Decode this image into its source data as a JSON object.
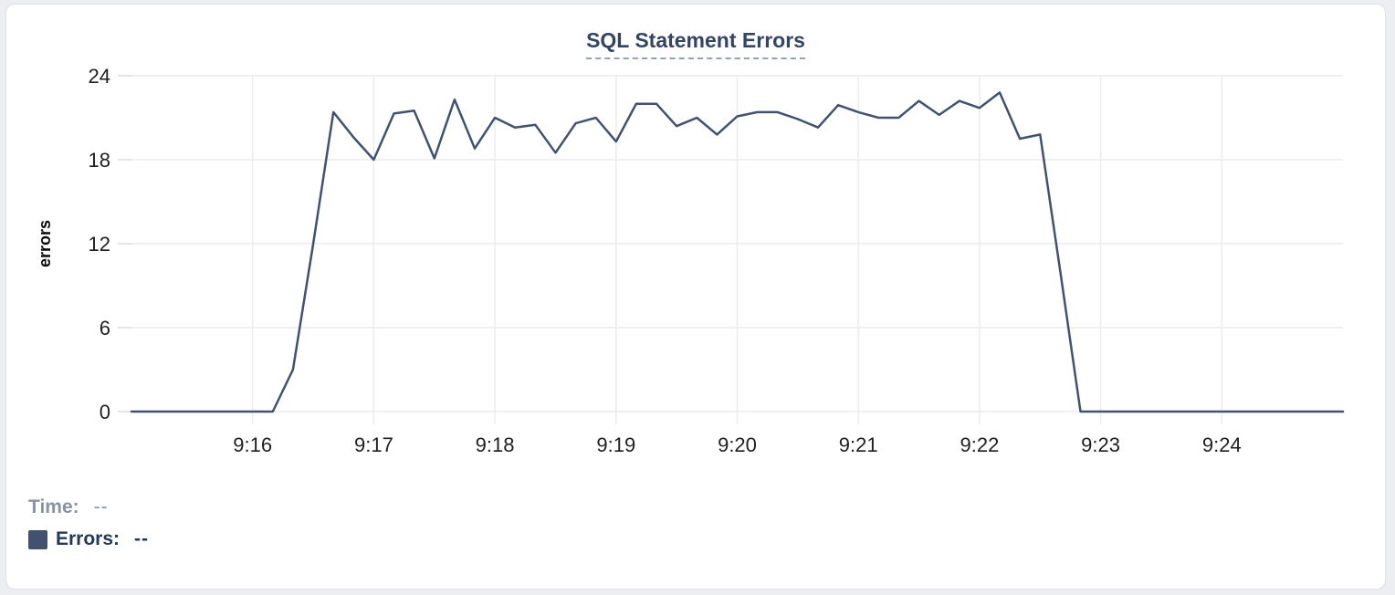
{
  "header": {
    "title": "SQL Statement Errors"
  },
  "legend": {
    "time_label": "Time:",
    "time_value": "--",
    "errors_label": "Errors:",
    "errors_value": "--"
  },
  "colors": {
    "line": "#42526e",
    "swatch": "#42526e",
    "title": "#344563",
    "title_underline": "#98a1b0",
    "time_text": "#8993a4",
    "errors_text": "#253858",
    "grid": "#ececec",
    "tick_dash": "#e4e4e4",
    "tick_label": "#1f1f1f",
    "axis_title": "#0a0a0a"
  },
  "chart_data": {
    "type": "line",
    "title": "SQL Statement Errors",
    "xlabel": "",
    "ylabel": "errors",
    "ylim": [
      0,
      24
    ],
    "yticks": [
      0,
      6,
      12,
      18,
      24
    ],
    "ytick_labels": [
      "0",
      "6",
      "12",
      "18",
      "24"
    ],
    "xtick_labels": [
      "9:16",
      "9:17",
      "9:18",
      "9:19",
      "9:20",
      "9:21",
      "9:22",
      "9:23",
      "9:24"
    ],
    "x_range": [
      "9:15:00",
      "9:25:00"
    ],
    "point_interval_seconds": 10,
    "grid": true,
    "legend_position": "bottom-left",
    "series": [
      {
        "name": "Errors",
        "start_time": "9:15:00",
        "values": [
          0,
          0,
          0,
          0,
          0,
          0,
          0,
          0,
          3,
          12,
          21.4,
          19.6,
          18,
          21.3,
          21.5,
          18.1,
          22.3,
          18.8,
          21,
          20.3,
          20.5,
          18.5,
          20.6,
          21,
          19.3,
          22,
          22,
          20.4,
          21,
          19.8,
          21.1,
          21.4,
          21.4,
          20.9,
          20.3,
          21.9,
          21.4,
          21,
          21,
          22.2,
          21.2,
          22.2,
          21.7,
          22.8,
          19.5,
          19.8,
          10,
          0,
          0,
          0,
          0,
          0,
          0,
          0,
          0,
          0,
          0,
          0,
          0,
          0,
          0
        ]
      }
    ]
  }
}
